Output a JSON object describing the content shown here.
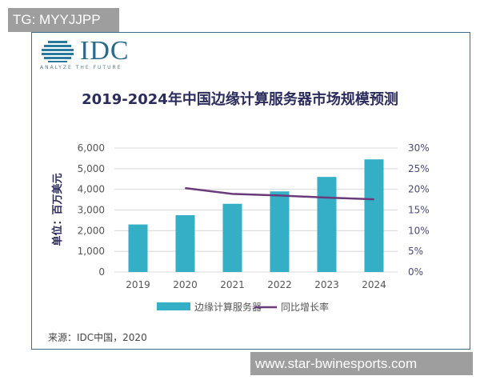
{
  "overlay": {
    "top_label": "TG: MYYJJPP",
    "bottom_label": "www.star-bwinesports.com"
  },
  "logo": {
    "name": "IDC",
    "tagline": "ANALYZE THE FUTURE"
  },
  "source": "来源：IDC中国，2020",
  "colors": {
    "bar": "#35afc6",
    "line": "#6a3a7a",
    "title": "#2b2b5c"
  },
  "chart_data": {
    "type": "bar",
    "title": "2019-2024年中国边缘计算服务器市场规模预测",
    "ylabel": "单位：百万美元",
    "categories": [
      "2019",
      "2020",
      "2021",
      "2022",
      "2023",
      "2024"
    ],
    "series": [
      {
        "name": "边缘计算服务器",
        "type": "bar",
        "axis": "left",
        "values": [
          2300,
          2750,
          3300,
          3900,
          4600,
          5450
        ]
      },
      {
        "name": "同比增长率",
        "type": "line",
        "axis": "right",
        "values": [
          null,
          20.3,
          18.9,
          18.5,
          18.0,
          17.6
        ]
      }
    ],
    "ylim": [
      0,
      6000
    ],
    "yticks": [
      "0",
      "1,000",
      "2,000",
      "3,000",
      "4,000",
      "5,000",
      "6,000"
    ],
    "y2lim": [
      0,
      30
    ],
    "y2ticks": [
      "0%",
      "5%",
      "10%",
      "15%",
      "20%",
      "25%",
      "30%"
    ],
    "grid": true,
    "legend": "bottom"
  }
}
